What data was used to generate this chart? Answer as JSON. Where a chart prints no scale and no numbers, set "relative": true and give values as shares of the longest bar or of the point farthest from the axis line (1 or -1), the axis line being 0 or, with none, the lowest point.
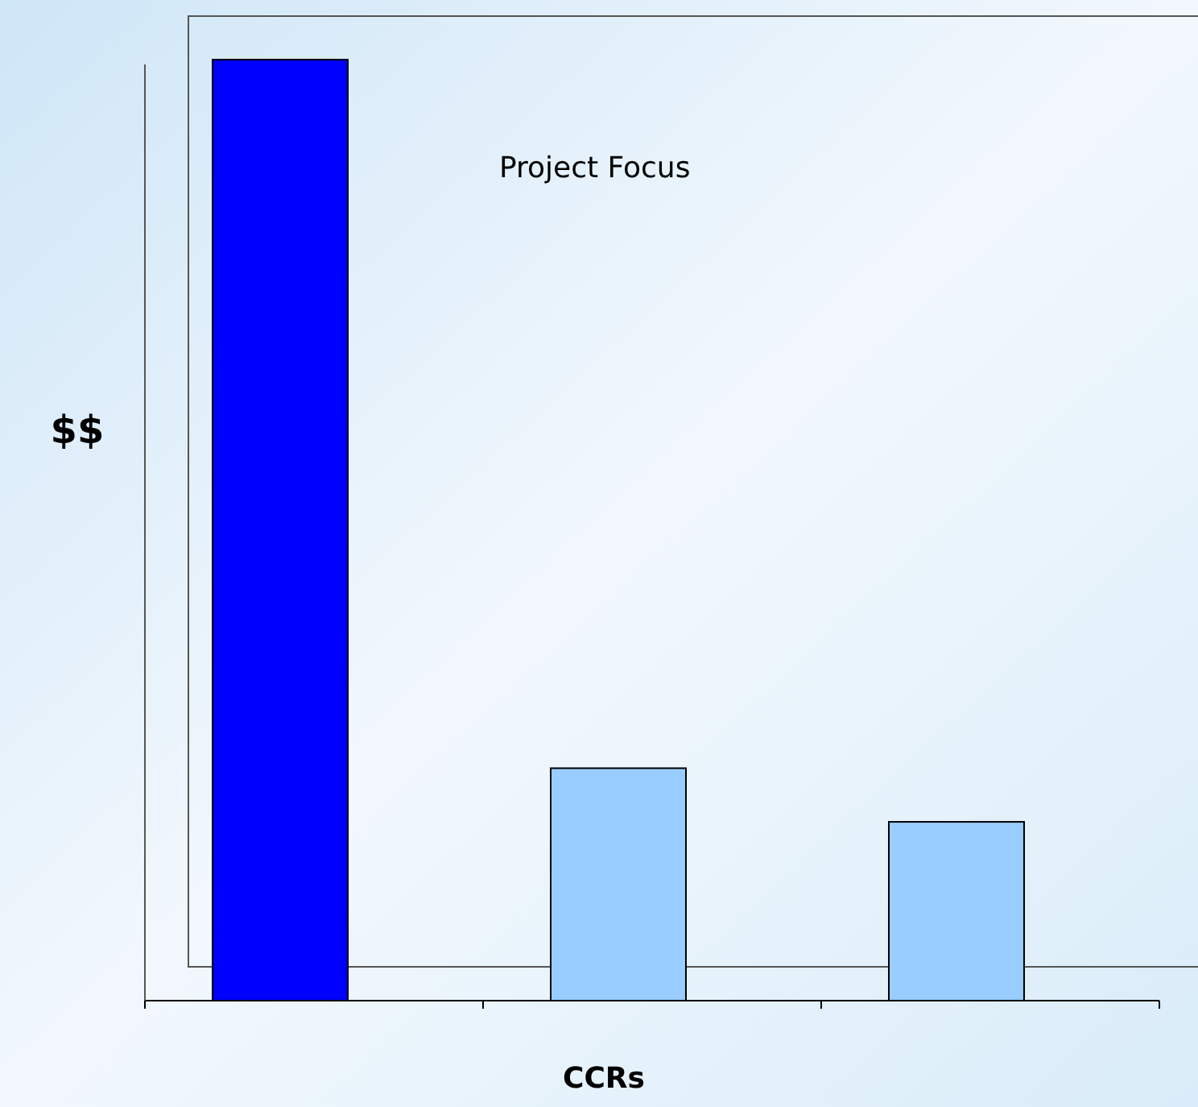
{
  "chart_data": {
    "type": "bar",
    "relative": true,
    "xlabel": "CCRs",
    "ylabel": "$$",
    "annotations": [
      "Project Focus"
    ],
    "categories": [
      null,
      null,
      null
    ],
    "values": [
      1,
      0.247,
      0.19
    ],
    "colors": [
      "#0000ff",
      "#99ccff",
      "#99ccff"
    ]
  }
}
